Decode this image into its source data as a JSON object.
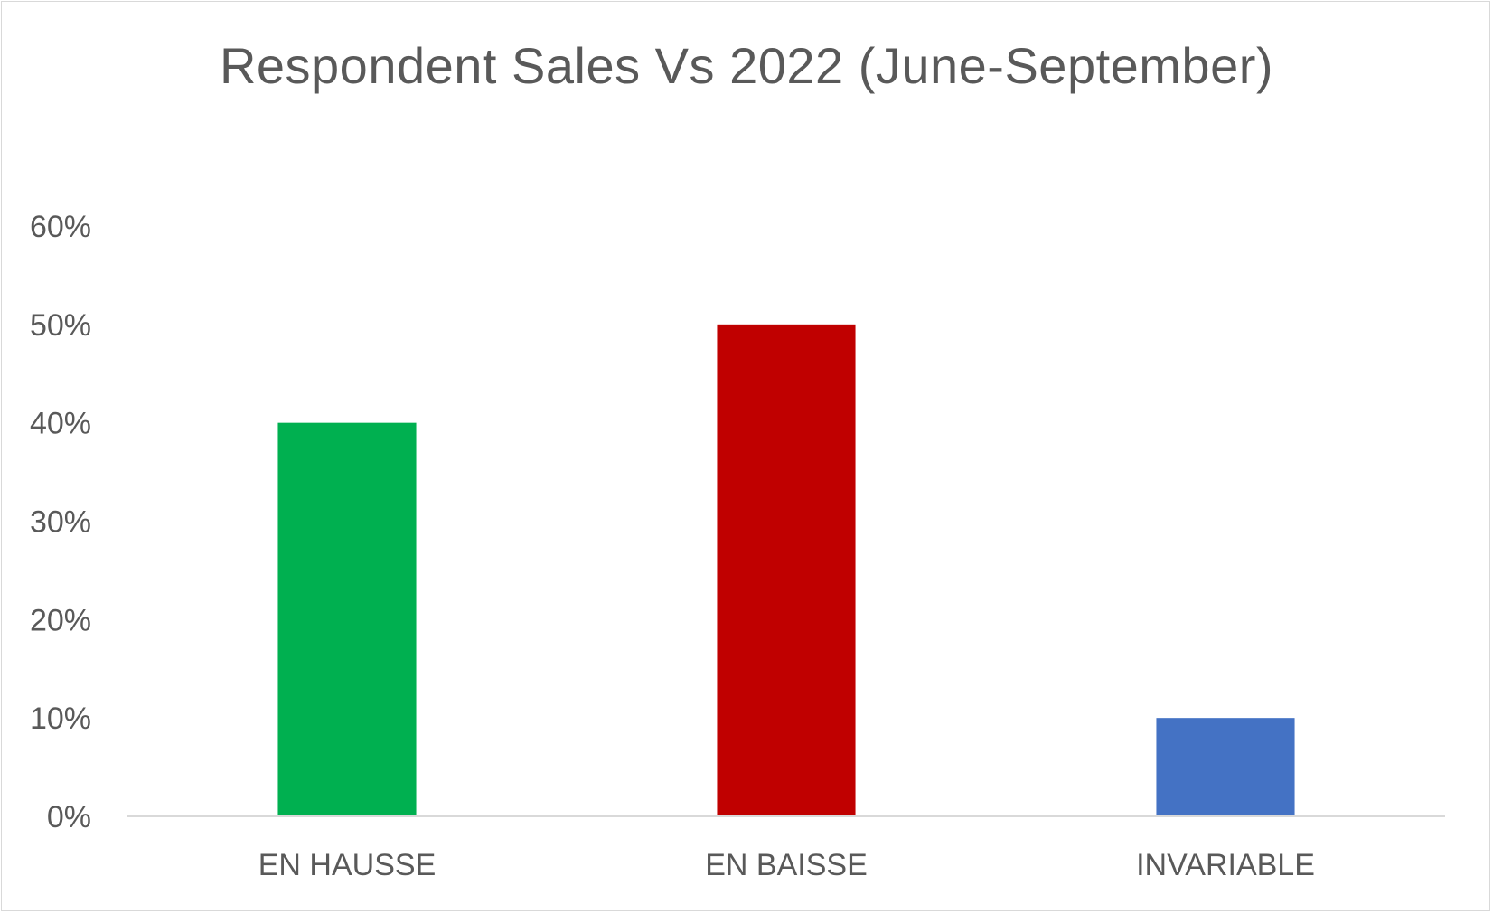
{
  "chart_data": {
    "type": "bar",
    "title": "Respondent Sales Vs 2022 (June-September)",
    "categories": [
      "EN HAUSSE",
      "EN BAISSE",
      "INVARIABLE"
    ],
    "values": [
      0.4,
      0.5,
      0.1
    ],
    "colors": [
      "#00b050",
      "#c00000",
      "#4472c4"
    ],
    "ylim": [
      0,
      0.6
    ],
    "yticks": [
      0,
      0.1,
      0.2,
      0.3,
      0.4,
      0.5,
      0.6
    ],
    "ytick_labels": [
      "0%",
      "10%",
      "20%",
      "30%",
      "40%",
      "50%",
      "60%"
    ],
    "xlabel": "",
    "ylabel": "",
    "grid": false,
    "legend": "none",
    "axis_color": "#d9d9d9"
  }
}
